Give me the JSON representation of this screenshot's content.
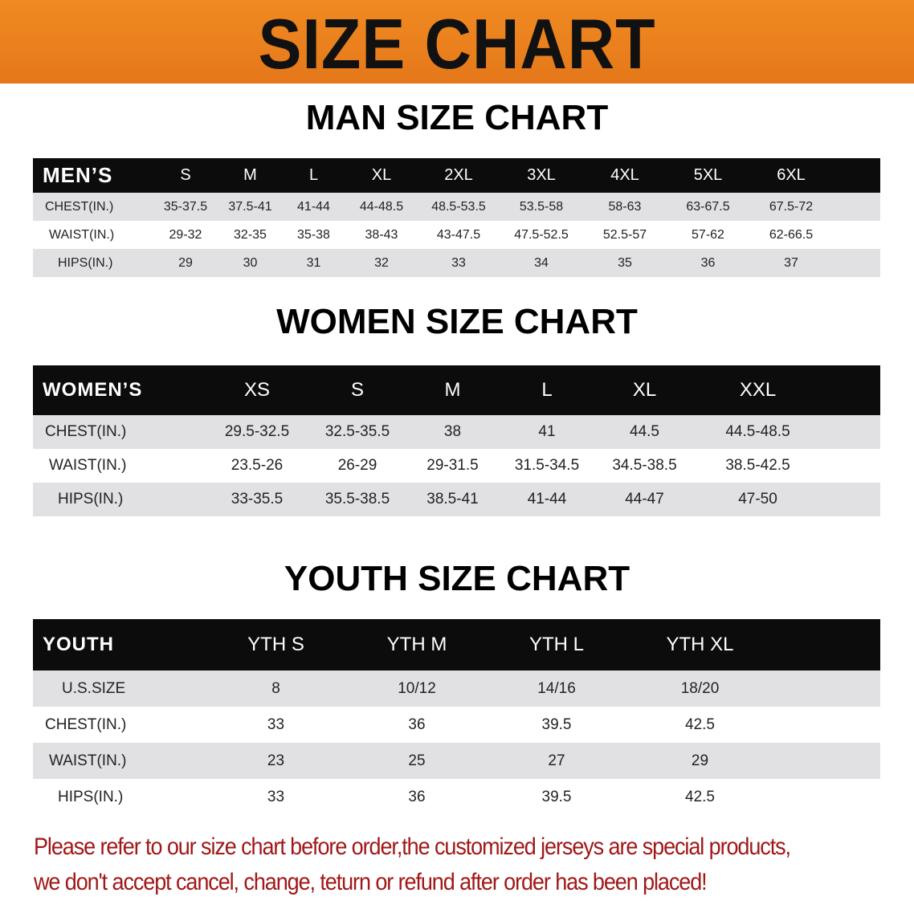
{
  "banner": {
    "title": "SIZE CHART",
    "color": "#e97f1e"
  },
  "men": {
    "title": "MAN SIZE CHART",
    "header": "MEN’S",
    "sizes": [
      "S",
      "M",
      "L",
      "XL",
      "2XL",
      "3XL",
      "4XL",
      "5XL",
      "6XL"
    ],
    "rows": [
      {
        "label": "CHEST(IN.)",
        "values": [
          "35-37.5",
          "37.5-41",
          "41-44",
          "44-48.5",
          "48.5-53.5",
          "53.5-58",
          "58-63",
          "63-67.5",
          "67.5-72"
        ]
      },
      {
        "label": "WAIST(IN.)",
        "values": [
          "29-32",
          "32-35",
          "35-38",
          "38-43",
          "43-47.5",
          "47.5-52.5",
          "52.5-57",
          "57-62",
          "62-66.5"
        ]
      },
      {
        "label": "HIPS(IN.)",
        "values": [
          "29",
          "30",
          "31",
          "32",
          "33",
          "34",
          "35",
          "36",
          "37"
        ]
      }
    ]
  },
  "women": {
    "title": "WOMEN SIZE CHART",
    "header": "WOMEN’S",
    "sizes": [
      "XS",
      "S",
      "M",
      "L",
      "XL",
      "XXL"
    ],
    "rows": [
      {
        "label": "CHEST(IN.)",
        "values": [
          "29.5-32.5",
          "32.5-35.5",
          "38",
          "41",
          "44.5",
          "44.5-48.5"
        ]
      },
      {
        "label": "WAIST(IN.)",
        "values": [
          "23.5-26",
          "26-29",
          "29-31.5",
          "31.5-34.5",
          "34.5-38.5",
          "38.5-42.5"
        ]
      },
      {
        "label": "HIPS(IN.)",
        "values": [
          "33-35.5",
          "35.5-38.5",
          "38.5-41",
          "41-44",
          "44-47",
          "47-50"
        ]
      }
    ]
  },
  "youth": {
    "title": "YOUTH SIZE CHART",
    "header": "YOUTH",
    "sizes": [
      "YTH S",
      "YTH M",
      "YTH L",
      "YTH XL"
    ],
    "rows": [
      {
        "label": "U.S.SIZE",
        "values": [
          "8",
          "10/12",
          "14/16",
          "18/20"
        ]
      },
      {
        "label": "CHEST(IN.)",
        "values": [
          "33",
          "36",
          "39.5",
          "42.5"
        ]
      },
      {
        "label": "WAIST(IN.)",
        "values": [
          "23",
          "25",
          "27",
          "29"
        ]
      },
      {
        "label": "HIPS(IN.)",
        "values": [
          "33",
          "36",
          "39.5",
          "42.5"
        ]
      }
    ]
  },
  "notice": {
    "line1": "Please refer to our size chart before order,the customized jerseys are special products,",
    "line2": "we don't accept cancel, change, teturn or refund after order has been placed!",
    "color": "#a01818"
  }
}
